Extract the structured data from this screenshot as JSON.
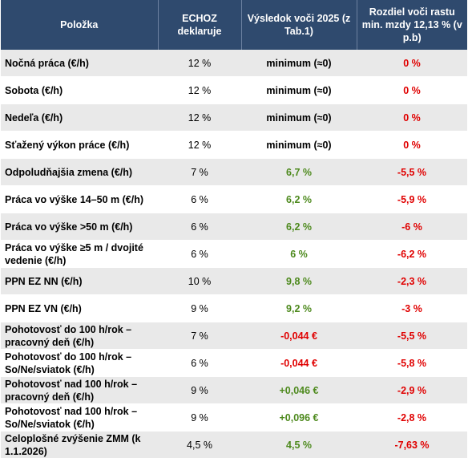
{
  "headers": {
    "item": "Položka",
    "declares": "ECHOZ deklaruje",
    "result": "Výsledok voči 2025 (z Tab.1)",
    "difference": "Rozdiel voči rastu min. mzdy 12,13 % (v p.b)"
  },
  "colors": {
    "header_bg": "#2f4a6e",
    "row_shade": "#e9e9e9",
    "positive": "#4e8a1e",
    "negative": "#e00000"
  },
  "rows": [
    {
      "item": "Nočná práca (€/h)",
      "declares": "12 %",
      "result": "minimum  (≈0)",
      "result_color": "black",
      "difference": "0 %"
    },
    {
      "item": "Sobota (€/h)",
      "declares": "12 %",
      "result": "minimum  (≈0)",
      "result_color": "black",
      "difference": "0 %"
    },
    {
      "item": "Nedeľa (€/h)",
      "declares": "12 %",
      "result": "minimum  (≈0)",
      "result_color": "black",
      "difference": "0 %"
    },
    {
      "item": "Sťažený výkon práce (€/h)",
      "declares": "12 %",
      "result": "minimum  (≈0)",
      "result_color": "black",
      "difference": "0 %"
    },
    {
      "item": "Odpoludňajšia zmena (€/h)",
      "declares": "7 %",
      "result": "6,7 %",
      "result_color": "green",
      "difference": "-5,5 %"
    },
    {
      "item": "Práca  vo výške 14–50  m (€/h)",
      "declares": "6 %",
      "result": "6,2 %",
      "result_color": "green",
      "difference": "-5,9 %"
    },
    {
      "item": "Práca  vo výške >50 m (€/h)",
      "declares": "6 %",
      "result": "6,2 %",
      "result_color": "green",
      "difference": "-6 %"
    },
    {
      "item": "Práca  vo výške ≥5 m / dvojité vedenie (€/h)",
      "declares": "6 %",
      "result": "6 %",
      "result_color": "green",
      "difference": "-6,2 %"
    },
    {
      "item": "PPN  EZ NN (€/h)",
      "declares": "10 %",
      "result": "9,8 %",
      "result_color": "green",
      "difference": "-2,3 %"
    },
    {
      "item": "PPN  EZ VN (€/h)",
      "declares": "9 %",
      "result": "9,2 %",
      "result_color": "green",
      "difference": "-3 %"
    },
    {
      "item": "Pohotovosť do 100 h/rok – pracovný deň (€/h)",
      "declares": "7 %",
      "result": "-0,044 €",
      "result_color": "red",
      "difference": "-5,5 %"
    },
    {
      "item": "Pohotovosť do 100 h/rok – So/Ne/sviatok (€/h)",
      "declares": "6 %",
      "result": "-0,044 €",
      "result_color": "red",
      "difference": "-5,8 %"
    },
    {
      "item": "Pohotovosť nad 100  h/rok – pracovný deň (€/h)",
      "declares": "9 %",
      "result": "+0,046 €",
      "result_color": "green",
      "difference": "-2,9 %"
    },
    {
      "item": "Pohotovosť nad 100  h/rok – So/Ne/sviatok (€/h)",
      "declares": "9 %",
      "result": "+0,096 €",
      "result_color": "green",
      "difference": "-2,8 %"
    },
    {
      "item": "Celoplošné zvýšenie ZMM (k 1.1.2026)",
      "declares": "4,5 %",
      "result": "4,5 %",
      "result_color": "green",
      "difference": "-7,63  %"
    }
  ]
}
